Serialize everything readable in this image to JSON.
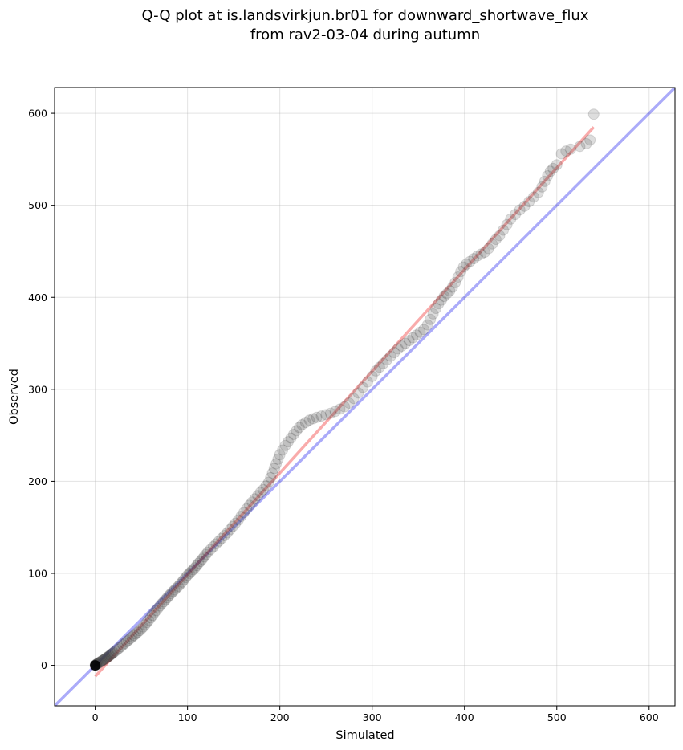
{
  "chart_data": {
    "type": "scatter",
    "title": "Q-Q plot at is.landsvirkjun.br01 for downward_shortwave_flux",
    "subtitle": "from rav2-03-04 during autumn",
    "xlabel": "Simulated",
    "ylabel": "Observed",
    "xlim": [
      -44,
      628
    ],
    "ylim": [
      -44,
      628
    ],
    "xticks": [
      0,
      100,
      200,
      300,
      400,
      500,
      600
    ],
    "yticks": [
      0,
      100,
      200,
      300,
      400,
      500,
      600
    ],
    "grid": true,
    "colors": {
      "points": "#404040",
      "point_edge": "#000000",
      "identity_line": "#0000ee",
      "fit_line": "#ee2222"
    },
    "identity_line": [
      [
        -44,
        -44
      ],
      [
        628,
        628
      ]
    ],
    "fit_line": [
      [
        0,
        -12
      ],
      [
        540,
        585
      ]
    ],
    "points": [
      [
        0,
        0
      ],
      [
        0.5,
        0.3
      ],
      [
        1,
        0.8
      ],
      [
        1.5,
        1.2
      ],
      [
        2,
        1.6
      ],
      [
        3,
        2.2
      ],
      [
        4,
        2.8
      ],
      [
        5,
        3.5
      ],
      [
        6,
        4.1
      ],
      [
        7,
        4.7
      ],
      [
        8,
        5.3
      ],
      [
        9,
        5.9
      ],
      [
        10,
        6.6
      ],
      [
        11,
        7.3
      ],
      [
        12,
        8.0
      ],
      [
        13,
        8.7
      ],
      [
        14,
        9.4
      ],
      [
        15,
        10.1
      ],
      [
        16,
        10.9
      ],
      [
        17,
        11.7
      ],
      [
        18,
        12.5
      ],
      [
        19,
        13.3
      ],
      [
        20,
        14.1
      ],
      [
        22,
        15.6
      ],
      [
        24,
        17.2
      ],
      [
        26,
        18.8
      ],
      [
        28,
        20.5
      ],
      [
        30,
        22.2
      ],
      [
        32,
        24.0
      ],
      [
        34,
        25.7
      ],
      [
        36,
        27.4
      ],
      [
        38,
        29.1
      ],
      [
        40,
        30.8
      ],
      [
        42,
        32.5
      ],
      [
        44,
        34.2
      ],
      [
        46,
        36.0
      ],
      [
        48,
        37.8
      ],
      [
        50,
        39.7
      ],
      [
        52,
        41.8
      ],
      [
        54,
        44.0
      ],
      [
        56,
        46.5
      ],
      [
        58,
        49.0
      ],
      [
        60,
        51.7
      ],
      [
        62,
        54.3
      ],
      [
        64,
        57.0
      ],
      [
        66,
        59.5
      ],
      [
        68,
        62.0
      ],
      [
        70,
        64.5
      ],
      [
        72,
        67.0
      ],
      [
        74,
        69.0
      ],
      [
        76,
        71.2
      ],
      [
        78,
        73.5
      ],
      [
        80,
        75.8
      ],
      [
        82,
        78.0
      ],
      [
        84,
        80.0
      ],
      [
        86,
        82.0
      ],
      [
        88,
        84.0
      ],
      [
        90,
        86.0
      ],
      [
        92,
        88.2
      ],
      [
        94,
        90.5
      ],
      [
        96,
        93.0
      ],
      [
        98,
        95.5
      ],
      [
        100,
        98.0
      ],
      [
        102,
        100.0
      ],
      [
        104,
        102.0
      ],
      [
        106,
        104.0
      ],
      [
        108,
        106.0
      ],
      [
        110,
        108.5
      ],
      [
        112,
        111.0
      ],
      [
        114,
        113.0
      ],
      [
        116,
        115.5
      ],
      [
        118,
        118.0
      ],
      [
        120,
        120.5
      ],
      [
        122,
        123.0
      ],
      [
        125,
        126.0
      ],
      [
        128,
        129.0
      ],
      [
        131,
        132.0
      ],
      [
        134,
        135.0
      ],
      [
        137,
        138.0
      ],
      [
        140,
        141.0
      ],
      [
        143,
        144.0
      ],
      [
        146,
        147.5
      ],
      [
        149,
        151.0
      ],
      [
        152,
        154.5
      ],
      [
        155,
        158.0
      ],
      [
        158,
        162.0
      ],
      [
        161,
        166.0
      ],
      [
        164,
        170.0
      ],
      [
        167,
        174.0
      ],
      [
        170,
        177.5
      ],
      [
        173,
        181.0
      ],
      [
        176,
        184.5
      ],
      [
        179,
        188.0
      ],
      [
        182,
        191.0
      ],
      [
        185,
        195.0
      ],
      [
        188,
        199.0
      ],
      [
        190,
        204.0
      ],
      [
        192,
        209.0
      ],
      [
        194,
        214.0
      ],
      [
        196,
        219.0
      ],
      [
        198,
        224.0
      ],
      [
        200,
        229.0
      ],
      [
        203,
        234.0
      ],
      [
        206,
        239.0
      ],
      [
        209,
        243.0
      ],
      [
        212,
        247.0
      ],
      [
        215,
        251.0
      ],
      [
        218,
        255.0
      ],
      [
        221,
        258.5
      ],
      [
        224,
        261.5
      ],
      [
        228,
        264.0
      ],
      [
        232,
        266.5
      ],
      [
        236,
        268.0
      ],
      [
        240,
        269.5
      ],
      [
        245,
        271.0
      ],
      [
        250,
        272.5
      ],
      [
        255,
        274.0
      ],
      [
        260,
        276.0
      ],
      [
        265,
        278.5
      ],
      [
        270,
        281.0
      ],
      [
        275,
        285.0
      ],
      [
        280,
        290.0
      ],
      [
        285,
        296.0
      ],
      [
        290,
        302.0
      ],
      [
        295,
        308.0
      ],
      [
        300,
        314.0
      ],
      [
        304,
        320.0
      ],
      [
        308,
        324.0
      ],
      [
        312,
        328.0
      ],
      [
        316,
        332.0
      ],
      [
        320,
        336.0
      ],
      [
        324,
        340.0
      ],
      [
        328,
        344.0
      ],
      [
        332,
        347.0
      ],
      [
        336,
        350.0
      ],
      [
        340,
        353.0
      ],
      [
        344,
        356.0
      ],
      [
        348,
        359.0
      ],
      [
        352,
        362.0
      ],
      [
        356,
        365.0
      ],
      [
        360,
        370.0
      ],
      [
        363,
        376.0
      ],
      [
        366,
        382.0
      ],
      [
        369,
        388.0
      ],
      [
        372,
        393.0
      ],
      [
        375,
        397.0
      ],
      [
        378,
        401.0
      ],
      [
        381,
        404.0
      ],
      [
        384,
        407.0
      ],
      [
        387,
        411.0
      ],
      [
        390,
        416.0
      ],
      [
        393,
        422.0
      ],
      [
        396,
        428.0
      ],
      [
        399,
        433.0
      ],
      [
        402,
        436.0
      ],
      [
        406,
        439.0
      ],
      [
        410,
        442.0
      ],
      [
        414,
        445.0
      ],
      [
        418,
        447.0
      ],
      [
        422,
        449.0
      ],
      [
        426,
        453.0
      ],
      [
        430,
        458.0
      ],
      [
        434,
        463.0
      ],
      [
        438,
        467.0
      ],
      [
        442,
        473.0
      ],
      [
        446,
        479.0
      ],
      [
        450,
        485.0
      ],
      [
        455,
        490.0
      ],
      [
        460,
        495.0
      ],
      [
        465,
        499.0
      ],
      [
        470,
        504.0
      ],
      [
        475,
        509.0
      ],
      [
        480,
        514.0
      ],
      [
        484,
        520.0
      ],
      [
        487,
        526.0
      ],
      [
        490,
        532.0
      ],
      [
        493,
        537.0
      ],
      [
        496,
        540.0
      ],
      [
        500,
        544.0
      ],
      [
        505,
        556.0
      ],
      [
        510,
        559.0
      ],
      [
        515,
        561.0
      ],
      [
        525,
        564.0
      ],
      [
        532,
        567.0
      ],
      [
        536,
        571.0
      ],
      [
        540,
        599.0
      ]
    ]
  }
}
